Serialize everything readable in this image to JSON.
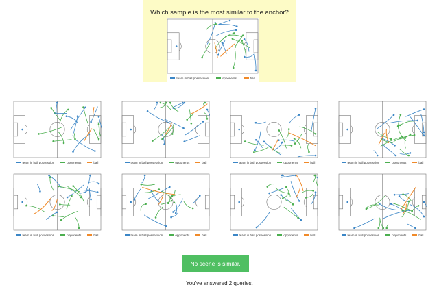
{
  "question": "Which sample is the most similar to the anchor?",
  "legend": {
    "team_label": "team in ball possession",
    "opponents_label": "opponents",
    "ball_label": "ball"
  },
  "colors": {
    "team": "#3b86c6",
    "opponents": "#4caf50",
    "ball": "#f08a2a",
    "anchor_bg": "#fdfbc6",
    "button": "#4fbf62"
  },
  "none_button_label": "No scene is similar.",
  "status_text": "You've answered 2 queries.",
  "sample_count": 8
}
